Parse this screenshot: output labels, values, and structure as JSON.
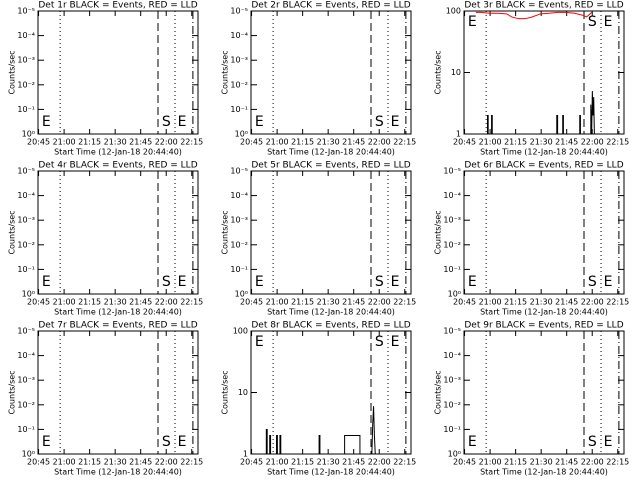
{
  "axes": {
    "xlabel": "Start Time (12-Jan-18 20:44:40)",
    "ylabel": "Counts/sec",
    "xlim": [
      0,
      94
    ],
    "xticks": [
      {
        "value": 0.333,
        "label": "20:45"
      },
      {
        "value": 15.333,
        "label": "21:00"
      },
      {
        "value": 30.333,
        "label": "21:15"
      },
      {
        "value": 45.333,
        "label": "21:30"
      },
      {
        "value": 60.333,
        "label": "21:45"
      },
      {
        "value": 75.333,
        "label": "22:00"
      },
      {
        "value": 90.333,
        "label": "22:15"
      }
    ],
    "markers": [
      {
        "x": 13,
        "style": "dotted"
      },
      {
        "x": 70.5,
        "style": "dashed"
      },
      {
        "x": 80.5,
        "style": "dotted"
      },
      {
        "x": 91,
        "style": "dashdot"
      }
    ],
    "annotations": [
      {
        "text": "E",
        "x": 2.3
      },
      {
        "text": "S",
        "x": 72.8
      },
      {
        "text": "E",
        "x": 82
      }
    ]
  },
  "chart_data": [
    {
      "type": "line",
      "title": "Det 1r BLACK = Events, RED = LLD",
      "log_y": true,
      "ylim": [
        1,
        1e-05
      ],
      "annotation_position": "bottom",
      "yticks": [
        {
          "value": 1,
          "label": "10⁰"
        },
        {
          "value": 0.1,
          "label": "10⁻¹"
        },
        {
          "value": 0.01,
          "label": "10⁻²"
        },
        {
          "value": 0.001,
          "label": "10⁻³"
        },
        {
          "value": 0.0001,
          "label": "10⁻⁴"
        },
        {
          "value": 1e-05,
          "label": "10⁻⁵"
        }
      ],
      "series": []
    },
    {
      "type": "line",
      "title": "Det 2r BLACK = Events, RED = LLD",
      "log_y": true,
      "ylim": [
        1,
        1e-05
      ],
      "annotation_position": "bottom",
      "yticks": [
        {
          "value": 1,
          "label": "10⁰"
        },
        {
          "value": 0.1,
          "label": "10⁻¹"
        },
        {
          "value": 0.01,
          "label": "10⁻²"
        },
        {
          "value": 0.001,
          "label": "10⁻³"
        },
        {
          "value": 0.0001,
          "label": "10⁻⁴"
        },
        {
          "value": 1e-05,
          "label": "10⁻⁵"
        }
      ],
      "series": []
    },
    {
      "type": "line",
      "title": "Det 3r BLACK = Events, RED = LLD",
      "log_y": true,
      "ylim": [
        1,
        100
      ],
      "annotation_position": "top",
      "yticks": [
        1,
        10,
        100
      ],
      "series": [
        {
          "color": "#000000",
          "x": [
            0,
            13.8,
            13.8,
            14.2,
            14.2,
            16.2,
            16.2,
            16.6,
            16.6,
            54.5,
            54.5,
            55,
            55,
            58,
            58,
            58.4,
            58.4,
            68,
            68,
            68.4,
            68.4,
            74.5,
            74.5,
            75,
            75.4,
            75.8,
            76.2,
            76.6
          ],
          "values": [
            1,
            1,
            2,
            2,
            1,
            1,
            2,
            2,
            1,
            1,
            2,
            2,
            1,
            1,
            2,
            2,
            1,
            1,
            2,
            2,
            1,
            1,
            3,
            1,
            5,
            2,
            4,
            1
          ]
        },
        {
          "color": "#ff0000",
          "x": [
            7,
            10,
            15,
            20,
            25,
            28,
            32,
            36,
            40,
            45,
            50,
            55,
            60,
            65,
            70,
            72,
            75
          ],
          "values": [
            95,
            95,
            92,
            92,
            90,
            80,
            75,
            75,
            80,
            90,
            92,
            95,
            95,
            92,
            85,
            80,
            95
          ]
        }
      ]
    },
    {
      "type": "line",
      "title": "Det 4r BLACK = Events, RED = LLD",
      "log_y": true,
      "ylim": [
        1,
        1e-05
      ],
      "annotation_position": "bottom",
      "yticks": [
        {
          "value": 1,
          "label": "10⁰"
        },
        {
          "value": 0.1,
          "label": "10⁻¹"
        },
        {
          "value": 0.01,
          "label": "10⁻²"
        },
        {
          "value": 0.001,
          "label": "10⁻³"
        },
        {
          "value": 0.0001,
          "label": "10⁻⁴"
        },
        {
          "value": 1e-05,
          "label": "10⁻⁵"
        }
      ],
      "series": []
    },
    {
      "type": "line",
      "title": "Det 5r BLACK = Events, RED = LLD",
      "log_y": true,
      "ylim": [
        1,
        1e-05
      ],
      "annotation_position": "bottom",
      "yticks": [
        {
          "value": 1,
          "label": "10⁰"
        },
        {
          "value": 0.1,
          "label": "10⁻¹"
        },
        {
          "value": 0.01,
          "label": "10⁻²"
        },
        {
          "value": 0.001,
          "label": "10⁻³"
        },
        {
          "value": 0.0001,
          "label": "10⁻⁴"
        },
        {
          "value": 1e-05,
          "label": "10⁻⁵"
        }
      ],
      "series": []
    },
    {
      "type": "line",
      "title": "Det 6r BLACK = Events, RED = LLD",
      "log_y": true,
      "ylim": [
        1,
        1e-05
      ],
      "annotation_position": "bottom",
      "yticks": [
        {
          "value": 1,
          "label": "10⁰"
        },
        {
          "value": 0.1,
          "label": "10⁻¹"
        },
        {
          "value": 0.01,
          "label": "10⁻²"
        },
        {
          "value": 0.001,
          "label": "10⁻³"
        },
        {
          "value": 0.0001,
          "label": "10⁻⁴"
        },
        {
          "value": 1e-05,
          "label": "10⁻⁵"
        }
      ],
      "series": []
    },
    {
      "type": "line",
      "title": "Det 7r BLACK = Events, RED = LLD",
      "log_y": true,
      "ylim": [
        1,
        1e-05
      ],
      "annotation_position": "bottom",
      "yticks": [
        {
          "value": 1,
          "label": "10⁰"
        },
        {
          "value": 0.1,
          "label": "10⁻¹"
        },
        {
          "value": 0.01,
          "label": "10⁻²"
        },
        {
          "value": 0.001,
          "label": "10⁻³"
        },
        {
          "value": 0.0001,
          "label": "10⁻⁴"
        },
        {
          "value": 1e-05,
          "label": "10⁻⁵"
        }
      ],
      "series": []
    },
    {
      "type": "line",
      "title": "Det 8r BLACK = Events, RED = LLD",
      "log_y": true,
      "ylim": [
        1,
        100
      ],
      "annotation_position": "top",
      "yticks": [
        1,
        10,
        100
      ],
      "series": [
        {
          "color": "#000000",
          "x": [
            0,
            9,
            9,
            9.5,
            9.5,
            11,
            11,
            11.5,
            11.5,
            15,
            15,
            15.5,
            15.5,
            17,
            17,
            17.5,
            17.5,
            40,
            40,
            40.5,
            40.5,
            55,
            55,
            64,
            64,
            71,
            71.5,
            72,
            72.5,
            73
          ],
          "values": [
            1,
            1,
            2.5,
            2.5,
            1,
            1,
            2,
            2,
            1,
            1,
            2,
            2,
            1,
            1,
            2,
            2,
            1,
            1,
            2,
            2,
            1,
            1,
            2,
            2,
            1,
            1,
            3,
            6,
            2,
            1
          ]
        }
      ]
    },
    {
      "type": "line",
      "title": "Det 9r BLACK = Events, RED = LLD",
      "log_y": true,
      "ylim": [
        1,
        1e-05
      ],
      "annotation_position": "bottom",
      "yticks": [
        {
          "value": 1,
          "label": "10⁰"
        },
        {
          "value": 0.1,
          "label": "10⁻¹"
        },
        {
          "value": 0.01,
          "label": "10⁻²"
        },
        {
          "value": 0.001,
          "label": "10⁻³"
        },
        {
          "value": 0.0001,
          "label": "10⁻⁴"
        },
        {
          "value": 1e-05,
          "label": "10⁻⁵"
        }
      ],
      "series": []
    }
  ]
}
